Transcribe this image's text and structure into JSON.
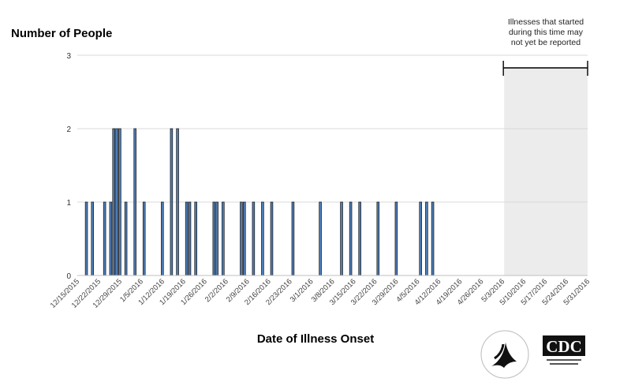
{
  "chart_data": {
    "type": "bar",
    "ylabel": "Number of People",
    "xlabel": "Date of Illness Onset",
    "ylim": [
      0,
      3
    ],
    "yticks": [
      "0",
      "1",
      "2",
      "3"
    ],
    "grid": true,
    "x_tick_labels": [
      "12/15/2015",
      "12/22/2015",
      "12/29/2015",
      "1/5/2016",
      "1/12/2016",
      "1/19/2016",
      "1/26/2016",
      "2/2/2016",
      "2/9/2016",
      "2/16/2016",
      "2/23/2016",
      "3/1/2016",
      "3/8/2016",
      "3/15/2016",
      "3/22/2016",
      "3/29/2016",
      "4/5/2016",
      "4/12/2016",
      "4/19/2016",
      "4/26/2016",
      "5/3/2016",
      "5/10/2016",
      "5/17/2016",
      "5/24/2016",
      "5/31/2016"
    ],
    "x_start": "12/15/2015",
    "days_per_tick": 7,
    "bars": [
      {
        "date": "12/18/2015",
        "value": 1
      },
      {
        "date": "12/20/2015",
        "value": 1
      },
      {
        "date": "12/24/2015",
        "value": 1
      },
      {
        "date": "12/26/2015",
        "value": 1
      },
      {
        "date": "12/27/2015",
        "value": 2
      },
      {
        "date": "12/28/2015",
        "value": 2
      },
      {
        "date": "12/29/2015",
        "value": 2
      },
      {
        "date": "12/31/2015",
        "value": 1
      },
      {
        "date": "1/3/2016",
        "value": 2
      },
      {
        "date": "1/6/2016",
        "value": 1
      },
      {
        "date": "1/12/2016",
        "value": 1
      },
      {
        "date": "1/15/2016",
        "value": 2
      },
      {
        "date": "1/17/2016",
        "value": 2
      },
      {
        "date": "1/20/2016",
        "value": 1
      },
      {
        "date": "1/21/2016",
        "value": 1
      },
      {
        "date": "1/23/2016",
        "value": 1
      },
      {
        "date": "1/29/2016",
        "value": 1
      },
      {
        "date": "1/30/2016",
        "value": 1
      },
      {
        "date": "2/1/2016",
        "value": 1
      },
      {
        "date": "2/7/2016",
        "value": 1
      },
      {
        "date": "2/8/2016",
        "value": 1
      },
      {
        "date": "2/11/2016",
        "value": 1
      },
      {
        "date": "2/14/2016",
        "value": 1
      },
      {
        "date": "2/17/2016",
        "value": 1
      },
      {
        "date": "2/24/2016",
        "value": 1
      },
      {
        "date": "3/4/2016",
        "value": 1
      },
      {
        "date": "3/11/2016",
        "value": 1
      },
      {
        "date": "3/14/2016",
        "value": 1
      },
      {
        "date": "3/17/2016",
        "value": 1
      },
      {
        "date": "3/23/2016",
        "value": 1
      },
      {
        "date": "3/29/2016",
        "value": 1
      },
      {
        "date": "4/6/2016",
        "value": 1
      },
      {
        "date": "4/8/2016",
        "value": 1
      },
      {
        "date": "4/10/2016",
        "value": 1
      }
    ],
    "reporting_lag_start": "5/3/2016",
    "reporting_lag_end": "5/31/2016",
    "annotation": "Illnesses that started during this time may not yet be reported",
    "colors": {
      "bar_fill": "#4f81bd",
      "bar_stroke": "#1f1f1f",
      "shade": "#ececec",
      "grid": "#d9d9d9"
    }
  },
  "logos": {
    "hhs": "HHS seal",
    "cdc": "CDC"
  }
}
